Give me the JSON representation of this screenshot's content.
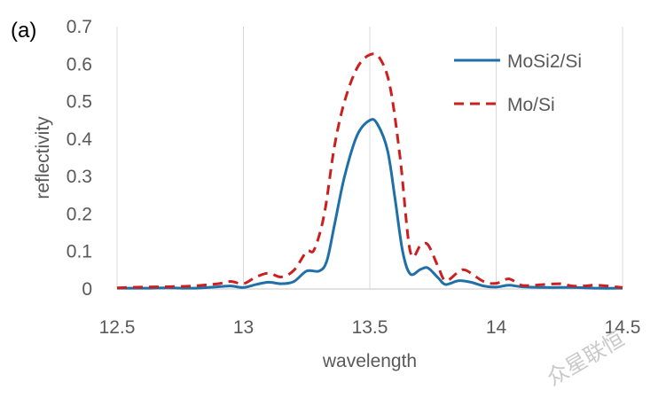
{
  "panel_label": "(a)",
  "watermark": "众星联恒",
  "chart_data": {
    "type": "line",
    "title": "",
    "xlabel": "wavelength",
    "ylabel": "reflectivity",
    "xlim": [
      12.5,
      14.5
    ],
    "ylim": [
      0,
      0.7
    ],
    "xticks": [
      "12.5",
      "13",
      "13.5",
      "14",
      "14.5"
    ],
    "yticks": [
      "0",
      "0.1",
      "0.2",
      "0.3",
      "0.4",
      "0.5",
      "0.6",
      "0.7"
    ],
    "grid": "vertical",
    "legend_position": "top-right",
    "series": [
      {
        "name": "MoSi2/Si",
        "color": "#1f6fa8",
        "style": "solid",
        "points": [
          [
            12.5,
            0.002
          ],
          [
            12.6,
            0.002
          ],
          [
            12.7,
            0.003
          ],
          [
            12.8,
            0.002
          ],
          [
            12.9,
            0.006
          ],
          [
            12.95,
            0.008
          ],
          [
            13.0,
            0.004
          ],
          [
            13.05,
            0.012
          ],
          [
            13.1,
            0.018
          ],
          [
            13.15,
            0.014
          ],
          [
            13.2,
            0.02
          ],
          [
            13.25,
            0.048
          ],
          [
            13.3,
            0.048
          ],
          [
            13.33,
            0.075
          ],
          [
            13.36,
            0.17
          ],
          [
            13.4,
            0.3
          ],
          [
            13.45,
            0.41
          ],
          [
            13.5,
            0.45
          ],
          [
            13.53,
            0.44
          ],
          [
            13.57,
            0.37
          ],
          [
            13.6,
            0.24
          ],
          [
            13.63,
            0.1
          ],
          [
            13.66,
            0.04
          ],
          [
            13.7,
            0.052
          ],
          [
            13.73,
            0.056
          ],
          [
            13.77,
            0.03
          ],
          [
            13.8,
            0.012
          ],
          [
            13.85,
            0.022
          ],
          [
            13.9,
            0.018
          ],
          [
            13.95,
            0.008
          ],
          [
            14.0,
            0.005
          ],
          [
            14.05,
            0.01
          ],
          [
            14.1,
            0.006
          ],
          [
            14.2,
            0.004
          ],
          [
            14.3,
            0.004
          ],
          [
            14.4,
            0.002
          ],
          [
            14.5,
            0.002
          ]
        ]
      },
      {
        "name": "Mo/Si",
        "color": "#cc1f1f",
        "style": "dashed",
        "points": [
          [
            12.5,
            0.003
          ],
          [
            12.6,
            0.005
          ],
          [
            12.7,
            0.006
          ],
          [
            12.8,
            0.008
          ],
          [
            12.9,
            0.014
          ],
          [
            12.95,
            0.02
          ],
          [
            13.0,
            0.014
          ],
          [
            13.05,
            0.032
          ],
          [
            13.1,
            0.042
          ],
          [
            13.15,
            0.032
          ],
          [
            13.2,
            0.05
          ],
          [
            13.25,
            0.1
          ],
          [
            13.28,
            0.105
          ],
          [
            13.32,
            0.2
          ],
          [
            13.36,
            0.38
          ],
          [
            13.4,
            0.5
          ],
          [
            13.45,
            0.59
          ],
          [
            13.5,
            0.625
          ],
          [
            13.54,
            0.615
          ],
          [
            13.58,
            0.54
          ],
          [
            13.62,
            0.35
          ],
          [
            13.66,
            0.1
          ],
          [
            13.7,
            0.115
          ],
          [
            13.73,
            0.118
          ],
          [
            13.77,
            0.06
          ],
          [
            13.8,
            0.022
          ],
          [
            13.85,
            0.045
          ],
          [
            13.88,
            0.05
          ],
          [
            13.95,
            0.02
          ],
          [
            14.0,
            0.015
          ],
          [
            14.05,
            0.027
          ],
          [
            14.1,
            0.01
          ],
          [
            14.15,
            0.01
          ],
          [
            14.25,
            0.014
          ],
          [
            14.3,
            0.008
          ],
          [
            14.35,
            0.008
          ],
          [
            14.4,
            0.01
          ],
          [
            14.5,
            0.004
          ]
        ]
      }
    ]
  }
}
